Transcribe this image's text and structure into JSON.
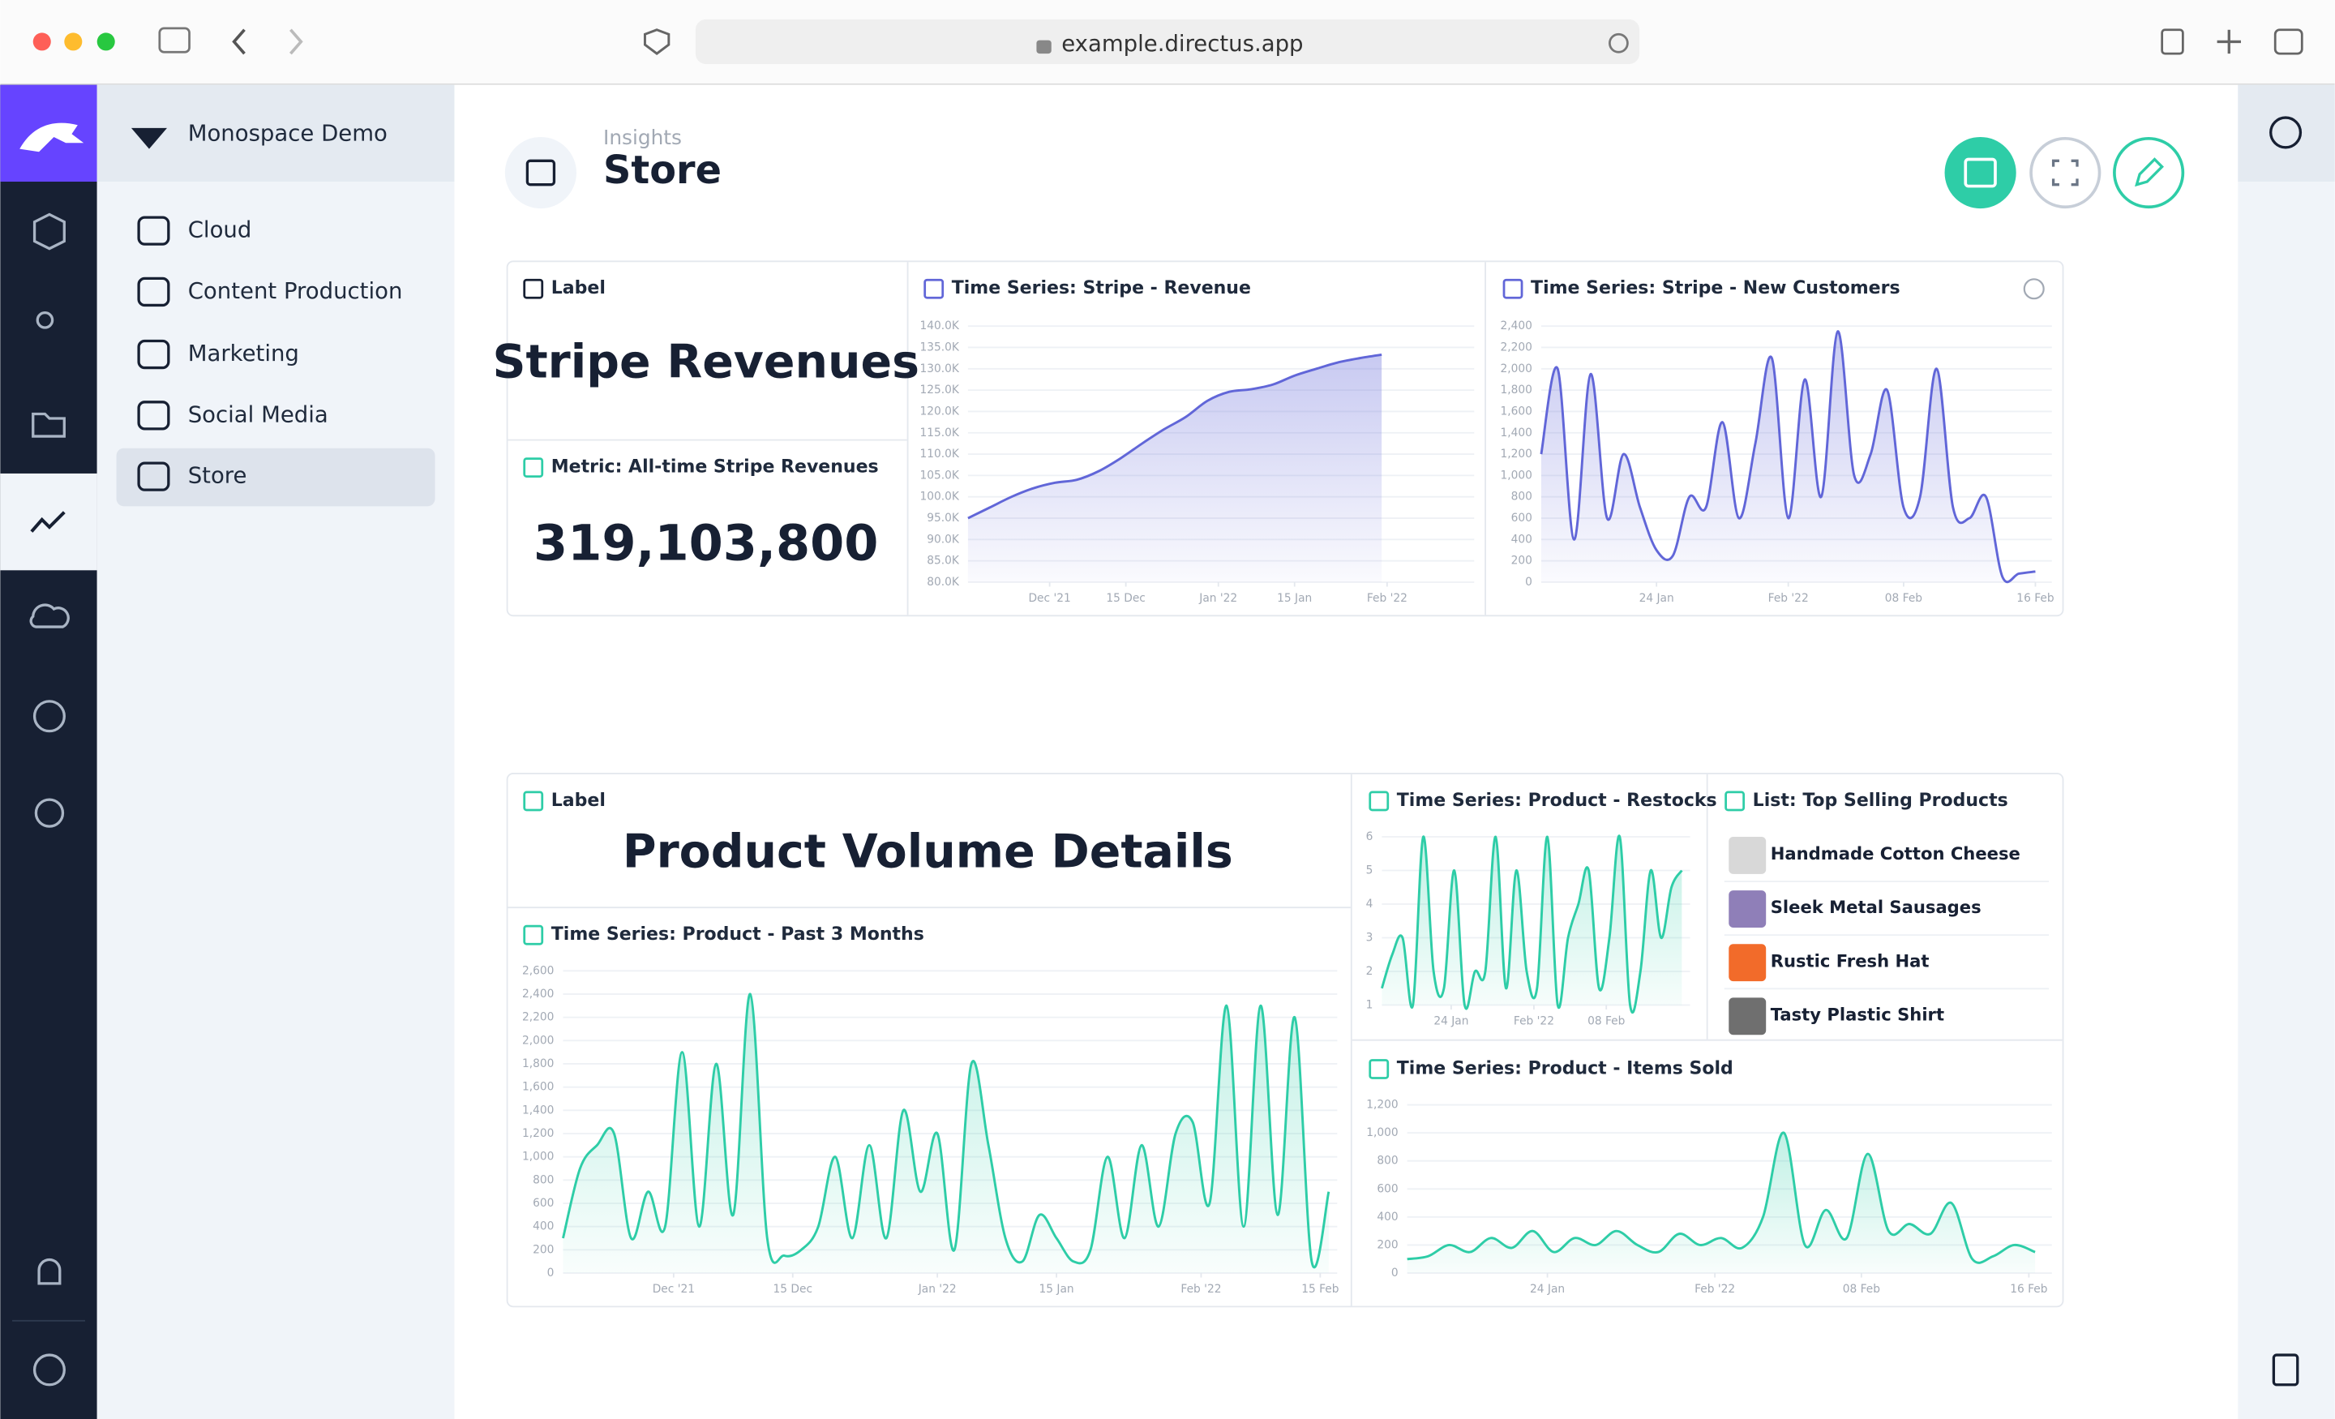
{
  "browser": {
    "url": "example.directus.app"
  },
  "sidebar": {
    "project": "Monospace Demo",
    "nav": [
      "Cloud",
      "Content Production",
      "Marketing",
      "Social Media",
      "Store"
    ]
  },
  "header": {
    "breadcrumb": "Insights",
    "title": "Store"
  },
  "panels": [
    {
      "header": "Label",
      "text": "Stripe Revenues"
    },
    {
      "header": "Metric: All-time Stripe Revenues",
      "text": "319,103,800"
    },
    {
      "header": "Label",
      "text": "Product Volume Details"
    },
    {
      "header": "List: Top Selling Products",
      "items": [
        "Handmade Cotton Cheese",
        "Sleek Metal Sausages",
        "Rustic Fresh Hat",
        "Tasty Plastic Shirt"
      ]
    }
  ],
  "chart_data": [
    {
      "type": "line",
      "title": "Time Series: Stripe - Revenue",
      "color": "#6166d8",
      "grid": true,
      "values": [
        95000,
        97500,
        100000,
        102000,
        103300,
        104000,
        106000,
        109000,
        112500,
        115800,
        118700,
        122500,
        124600,
        125200,
        126300,
        128400,
        130000,
        131500,
        132500,
        133300
      ],
      "xlim": [
        0,
        23.25
      ],
      "xticks": [
        {
          "value": 3.75,
          "label": "Dec '21"
        },
        {
          "value": 7.25,
          "label": "15 Dec"
        },
        {
          "value": 11.5,
          "label": "Jan '22"
        },
        {
          "value": 15,
          "label": "15 Jan"
        },
        {
          "value": 19.25,
          "label": "Feb '22"
        }
      ],
      "ylim": [
        80000,
        140000
      ],
      "yticks": [
        {
          "value": 80000,
          "label": "80.0K"
        },
        {
          "value": 85000,
          "label": "85.0K"
        },
        {
          "value": 90000,
          "label": "90.0K"
        },
        {
          "value": 95000,
          "label": "95.0K"
        },
        {
          "value": 100000,
          "label": "100.0K"
        },
        {
          "value": 105000,
          "label": "105.0K"
        },
        {
          "value": 110000,
          "label": "110.0K"
        },
        {
          "value": 115000,
          "label": "115.0K"
        },
        {
          "value": 120000,
          "label": "120.0K"
        },
        {
          "value": 125000,
          "label": "125.0K"
        },
        {
          "value": 130000,
          "label": "130.0K"
        },
        {
          "value": 135000,
          "label": "135.0K"
        },
        {
          "value": 140000,
          "label": "140.0K"
        }
      ]
    },
    {
      "type": "line",
      "title": "Time Series: Stripe - New Customers",
      "color": "#6166d8",
      "grid": true,
      "values": [
        1200,
        2000,
        400,
        1950,
        600,
        1200,
        700,
        300,
        250,
        800,
        700,
        1500,
        600,
        1300,
        2100,
        600,
        1900,
        800,
        2350,
        1000,
        1200,
        1800,
        700,
        800,
        2000,
        700,
        600,
        800,
        50,
        80,
        100
      ],
      "xlim": [
        0,
        31
      ],
      "xticks": [
        {
          "value": 7,
          "label": "24 Jan"
        },
        {
          "value": 15,
          "label": "Feb '22"
        },
        {
          "value": 22,
          "label": "08 Feb"
        },
        {
          "value": 30,
          "label": "16 Feb"
        }
      ],
      "ylim": [
        0,
        2400
      ],
      "yticks": [
        0,
        200,
        400,
        600,
        800,
        {
          "value": 1000,
          "label": "1,000"
        },
        {
          "value": 1200,
          "label": "1,200"
        },
        {
          "value": 1400,
          "label": "1,400"
        },
        {
          "value": 1600,
          "label": "1,600"
        },
        {
          "value": 1800,
          "label": "1,800"
        },
        {
          "value": 2000,
          "label": "2,000"
        },
        {
          "value": 2200,
          "label": "2,200"
        },
        {
          "value": 2400,
          "label": "2,400"
        }
      ]
    },
    {
      "type": "line",
      "title": "Time Series: Product - Past 3 Months",
      "color": "#2ecda7",
      "grid": true,
      "values": [
        300,
        900,
        1100,
        1200,
        300,
        700,
        400,
        1900,
        400,
        1800,
        500,
        2400,
        300,
        150,
        200,
        400,
        1000,
        300,
        1100,
        300,
        1400,
        700,
        1200,
        200,
        1800,
        1100,
        300,
        100,
        500,
        300,
        100,
        200,
        1000,
        300,
        1100,
        400,
        1200,
        1300,
        600,
        2300,
        400,
        2300,
        500,
        2200,
        100,
        700
      ],
      "xlim": [
        0,
        45.5
      ],
      "xticks": [
        {
          "value": 6.5,
          "label": "Dec '21"
        },
        {
          "value": 13.5,
          "label": "15 Dec"
        },
        {
          "value": 22,
          "label": "Jan '22"
        },
        {
          "value": 29,
          "label": "15 Jan"
        },
        {
          "value": 37.5,
          "label": "Feb '22"
        },
        {
          "value": 44.5,
          "label": "15 Feb"
        }
      ],
      "ylim": [
        0,
        2600
      ],
      "yticks": [
        0,
        200,
        400,
        600,
        800,
        {
          "value": 1000,
          "label": "1,000"
        },
        {
          "value": 1200,
          "label": "1,200"
        },
        {
          "value": 1400,
          "label": "1,400"
        },
        {
          "value": 1600,
          "label": "1,600"
        },
        {
          "value": 1800,
          "label": "1,800"
        },
        {
          "value": 2000,
          "label": "2,000"
        },
        {
          "value": 2200,
          "label": "2,200"
        },
        {
          "value": 2400,
          "label": "2,400"
        },
        {
          "value": 2600,
          "label": "2,600"
        }
      ]
    },
    {
      "type": "line",
      "title": "Time Series: Product - Restocks",
      "color": "#2ecda7",
      "grid": true,
      "values": [
        1.5,
        2.5,
        3,
        1,
        6,
        2,
        1.5,
        5,
        1,
        2,
        2,
        6,
        1.5,
        5,
        2,
        1.5,
        6,
        1,
        3,
        4,
        5,
        1.5,
        3,
        6,
        1,
        2,
        5,
        3,
        4.5,
        5
      ],
      "xlim": [
        0,
        29.8
      ],
      "xticks": [
        {
          "value": 6.7,
          "label": "24 Jan"
        },
        {
          "value": 14.7,
          "label": "Feb '22"
        },
        {
          "value": 21.7,
          "label": "08 Feb"
        }
      ],
      "ylim": [
        1,
        6
      ],
      "yticks": [
        1,
        2,
        3,
        4,
        5,
        6
      ]
    },
    {
      "type": "line",
      "title": "Time Series: Product - Items Sold",
      "color": "#2ecda7",
      "grid": true,
      "values": [
        100,
        120,
        200,
        150,
        250,
        180,
        300,
        150,
        250,
        200,
        300,
        200,
        150,
        280,
        200,
        250,
        180,
        400,
        1000,
        200,
        450,
        250,
        850,
        300,
        350,
        280,
        500,
        100,
        120,
        200,
        150
      ],
      "xlim": [
        0,
        30.8
      ],
      "xticks": [
        {
          "value": 6.7,
          "label": "24 Jan"
        },
        {
          "value": 14.7,
          "label": "Feb '22"
        },
        {
          "value": 21.7,
          "label": "08 Feb"
        },
        {
          "value": 29.7,
          "label": "16 Feb"
        }
      ],
      "ylim": [
        0,
        1200
      ],
      "yticks": [
        0,
        200,
        400,
        600,
        800,
        {
          "value": 1000,
          "label": "1,000"
        },
        {
          "value": 1200,
          "label": "1,200"
        }
      ]
    }
  ]
}
